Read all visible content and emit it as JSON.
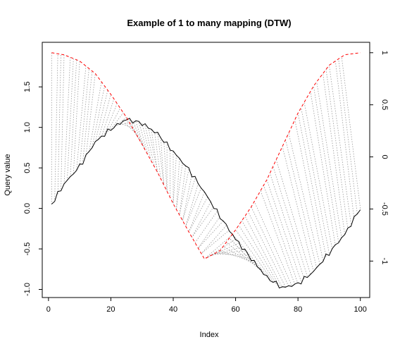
{
  "chart_data": {
    "type": "line",
    "title": "Example of 1 to many mapping (DTW)",
    "xlabel": "Index",
    "ylabel": "Query value",
    "xlim": [
      -2,
      103
    ],
    "ylim": [
      -1.1,
      2.05
    ],
    "right_ylim": [
      -1.35,
      1.1
    ],
    "x_ticks": [
      0,
      20,
      40,
      60,
      80,
      100
    ],
    "y_ticks": [
      -1.0,
      -0.5,
      0.0,
      0.5,
      1.0,
      1.5
    ],
    "y_tick_labels": [
      "-1.0",
      "-0.5",
      "0.0",
      "0.5",
      "1.0",
      "1.5"
    ],
    "right_ticks": [
      -1,
      -0.5,
      0,
      0.5,
      1
    ],
    "right_tick_labels": [
      "-1",
      "-0.5",
      "0",
      "0.5",
      "1"
    ],
    "series": [
      {
        "role": "query",
        "color": "#000000",
        "style": "solid",
        "axis": "left",
        "x": [
          1,
          5,
          10,
          15,
          20,
          25,
          30,
          35,
          40,
          45,
          50,
          55,
          60,
          65,
          70,
          75,
          80,
          85,
          90,
          95,
          100
        ],
        "y": [
          0.05,
          0.3,
          0.52,
          0.82,
          0.98,
          1.1,
          1.05,
          0.92,
          0.7,
          0.48,
          0.2,
          -0.1,
          -0.38,
          -0.62,
          -0.85,
          -0.98,
          -0.93,
          -0.78,
          -0.55,
          -0.32,
          0.0
        ]
      },
      {
        "role": "reference",
        "color": "#ff0000",
        "style": "dashed",
        "axis": "right",
        "x": [
          1,
          5,
          10,
          15,
          20,
          25,
          30,
          35,
          40,
          45,
          50,
          55,
          60,
          65,
          70,
          75,
          80,
          85,
          90,
          95,
          100
        ],
        "y": [
          1.0,
          0.98,
          0.92,
          0.8,
          0.6,
          0.38,
          0.12,
          -0.15,
          -0.45,
          -0.72,
          -0.98,
          -0.9,
          -0.7,
          -0.48,
          -0.22,
          0.1,
          0.42,
          0.68,
          0.88,
          0.98,
          1.0
        ]
      }
    ],
    "alignment_lines": {
      "color": "#999999",
      "style": "dotted",
      "description_free": true
    },
    "grid": false
  }
}
